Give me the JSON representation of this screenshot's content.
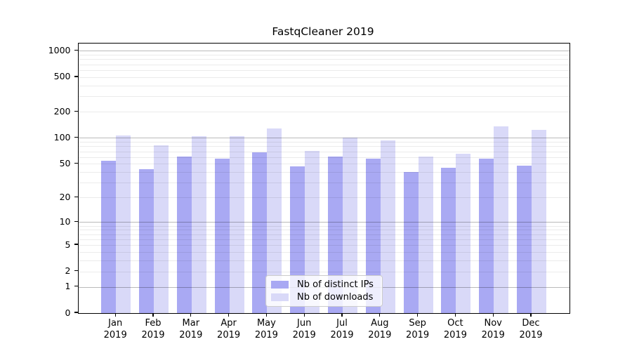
{
  "title": "FastqCleaner 2019",
  "chart_data": {
    "type": "bar",
    "title": "FastqCleaner 2019",
    "categories": [
      "Jan",
      "Feb",
      "Mar",
      "Apr",
      "May",
      "Jun",
      "Jul",
      "Aug",
      "Sep",
      "Oct",
      "Nov",
      "Dec"
    ],
    "year_label": "2019",
    "series": [
      {
        "name": "Nb of distinct IPs",
        "color": "#a9a9f3",
        "values": [
          54,
          43,
          61,
          57,
          68,
          47,
          61,
          57,
          40,
          45,
          58,
          48
        ]
      },
      {
        "name": "Nb of downloads",
        "color": "#d9d9f8",
        "values": [
          107,
          82,
          104,
          104,
          128,
          71,
          101,
          93,
          61,
          66,
          137,
          124
        ]
      }
    ],
    "y_scale": "log10(1+y)",
    "y_ticks": [
      0,
      1,
      2,
      5,
      10,
      20,
      50,
      100,
      200,
      500,
      1000
    ],
    "y_tick_labels": [
      "0",
      "1",
      "2",
      "5",
      "10",
      "20",
      "50",
      "100",
      "200",
      "500",
      "1000"
    ],
    "ylim": [
      0,
      1225
    ],
    "grid": true,
    "legend_position": "lower center",
    "major_grid_color": "rgba(0,0,0,0.27)",
    "minor_grid_color": "rgba(0,0,0,0.08)",
    "axis_color": "#000000"
  },
  "legend": {
    "items": [
      {
        "label": "Nb of distinct IPs"
      },
      {
        "label": "Nb of downloads"
      }
    ]
  }
}
